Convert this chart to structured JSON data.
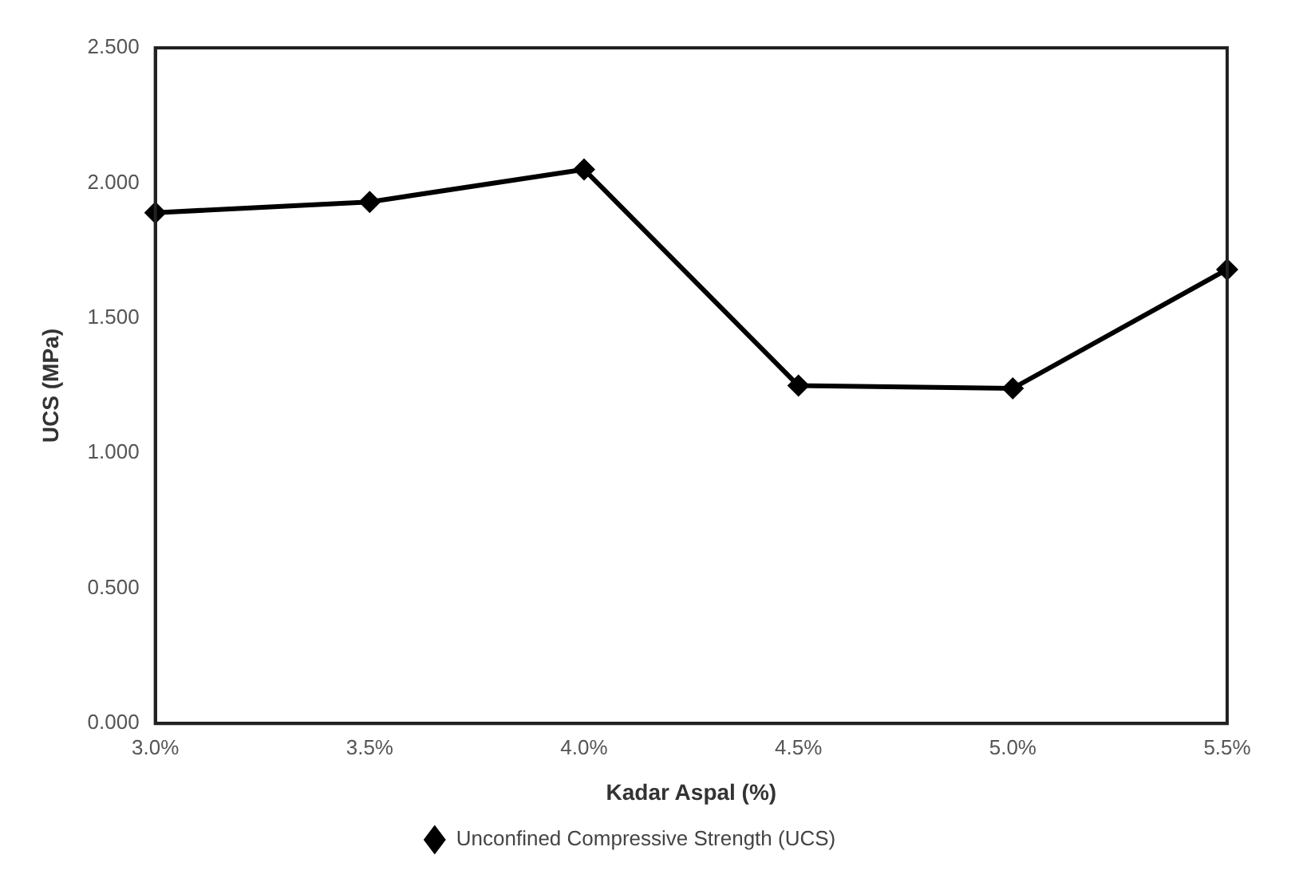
{
  "chart_data": {
    "type": "line",
    "xlabel": "Kadar Aspal (%)",
    "ylabel": "UCS (MPa)",
    "categories": [
      "3.0%",
      "3.5%",
      "4.0%",
      "4.5%",
      "5.0%",
      "5.5%"
    ],
    "series": [
      {
        "name": "Unconfined Compressive Strength (UCS)",
        "color": "#000000",
        "values": [
          1.89,
          1.93,
          2.05,
          1.25,
          1.24,
          1.68
        ]
      }
    ],
    "ylim": [
      0,
      2.5
    ],
    "yticks": [
      {
        "value": 0,
        "label": "0.000"
      },
      {
        "value": 0.5,
        "label": "0.500"
      },
      {
        "value": 1,
        "label": "1.000"
      },
      {
        "value": 1.5,
        "label": "1.500"
      },
      {
        "value": 2,
        "label": "2.000"
      },
      {
        "value": 2.5,
        "label": "2.500"
      }
    ],
    "grid": false,
    "legend": "bottom",
    "marker": "diamond",
    "line_style": "solid"
  }
}
